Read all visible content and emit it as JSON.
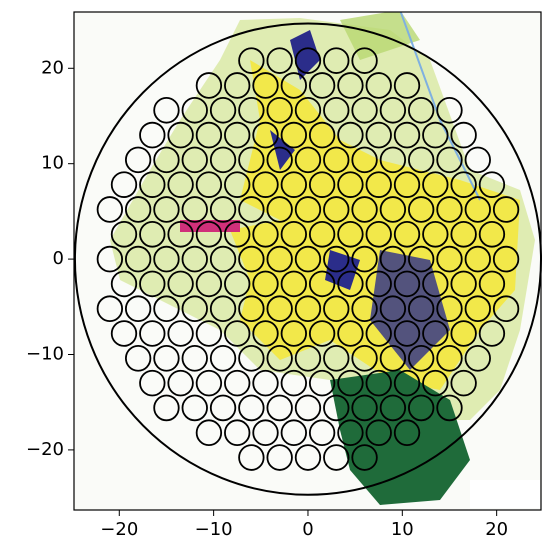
{
  "chart_data": {
    "type": "circles",
    "xlim": [
      -24.8,
      24.7
    ],
    "ylim": [
      -26.3,
      25.9
    ],
    "xticks": [
      {
        "value": -20,
        "label": "−20"
      },
      {
        "value": -10,
        "label": "−10"
      },
      0,
      10,
      20
    ],
    "yticks": [
      {
        "value": -20,
        "label": "−20"
      },
      {
        "value": -10,
        "label": "−10"
      },
      0,
      10,
      20
    ],
    "boundary_radius": 24.7,
    "circle_radius": 1.3,
    "color": "#000000",
    "rows": [
      {
        "y": 20.8,
        "x": [
          -6,
          -3,
          0,
          3,
          6
        ]
      },
      {
        "y": 18.2,
        "x": [
          -10.5,
          -7.5,
          -4.5,
          -1.5,
          1.5,
          4.5,
          7.5,
          10.5
        ]
      },
      {
        "y": 15.6,
        "x": [
          -15,
          -12,
          -9,
          -6,
          -3,
          0,
          3,
          6,
          9,
          12,
          15
        ]
      },
      {
        "y": 13,
        "x": [
          -16.5,
          -13.5,
          -10.5,
          -7.5,
          -4.5,
          -1.5,
          1.5,
          4.5,
          7.5,
          10.5,
          13.5,
          16.5
        ]
      },
      {
        "y": 10.4,
        "x": [
          -18,
          -15,
          -12,
          -9,
          -6,
          -3,
          0,
          3,
          6,
          9,
          12,
          15,
          18
        ]
      },
      {
        "y": 7.8,
        "x": [
          -19.5,
          -16.5,
          -13.5,
          -10.5,
          -7.5,
          -4.5,
          -1.5,
          1.5,
          4.5,
          7.5,
          10.5,
          13.5,
          16.5,
          19.5
        ]
      },
      {
        "y": 5.2,
        "x": [
          -21,
          -18,
          -15,
          -12,
          -9,
          -6,
          -3,
          0,
          3,
          6,
          9,
          12,
          15,
          18,
          21
        ]
      },
      {
        "y": 2.6,
        "x": [
          -19.5,
          -16.5,
          -13.5,
          -10.5,
          -7.5,
          -4.5,
          -1.5,
          1.5,
          4.5,
          7.5,
          10.5,
          13.5,
          16.5,
          19.5
        ]
      },
      {
        "y": 0,
        "x": [
          -21,
          -18,
          -15,
          -12,
          -9,
          -6,
          -3,
          0,
          3,
          6,
          9,
          12,
          15,
          18,
          21
        ]
      },
      {
        "y": -2.6,
        "x": [
          -19.5,
          -16.5,
          -13.5,
          -10.5,
          -7.5,
          -4.5,
          -1.5,
          1.5,
          4.5,
          7.5,
          10.5,
          13.5,
          16.5,
          19.5
        ]
      },
      {
        "y": -5.2,
        "x": [
          -21,
          -18,
          -15,
          -12,
          -9,
          -6,
          -3,
          0,
          3,
          6,
          9,
          12,
          15,
          18,
          21
        ]
      },
      {
        "y": -7.8,
        "x": [
          -19.5,
          -16.5,
          -13.5,
          -10.5,
          -7.5,
          -4.5,
          -1.5,
          1.5,
          4.5,
          7.5,
          10.5,
          13.5,
          16.5,
          19.5
        ]
      },
      {
        "y": -10.4,
        "x": [
          -18,
          -15,
          -12,
          -9,
          -6,
          -3,
          0,
          3,
          6,
          9,
          12,
          15,
          18
        ]
      },
      {
        "y": -13,
        "x": [
          -16.5,
          -13.5,
          -10.5,
          -7.5,
          -4.5,
          -1.5,
          1.5,
          4.5,
          7.5,
          10.5,
          13.5,
          16.5
        ]
      },
      {
        "y": -15.6,
        "x": [
          -15,
          -12,
          -9,
          -6,
          -3,
          0,
          3,
          6,
          9,
          12,
          15
        ]
      },
      {
        "y": -18.2,
        "x": [
          -10.5,
          -7.5,
          -4.5,
          -1.5,
          1.5,
          4.5,
          7.5,
          10.5
        ]
      },
      {
        "y": -20.8,
        "x": [
          -6,
          -3,
          0,
          3,
          6
        ]
      }
    ]
  }
}
